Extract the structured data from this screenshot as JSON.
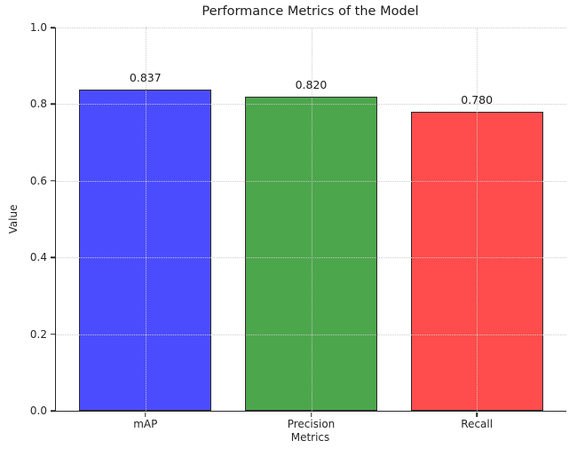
{
  "chart_data": {
    "type": "bar",
    "title": "Performance Metrics of the Model",
    "xlabel": "Metrics",
    "ylabel": "Value",
    "categories": [
      "mAP",
      "Precision",
      "Recall"
    ],
    "values": [
      0.837,
      0.82,
      0.78
    ],
    "value_labels": [
      "0.837",
      "0.820",
      "0.780"
    ],
    "bar_colors": [
      "#4C4CFF",
      "#4CA64C",
      "#FF4C4C"
    ],
    "bar_edge_color": "#2B2B2B",
    "ylim": [
      0.0,
      1.0
    ],
    "yticks": [
      "0.0",
      "0.2",
      "0.4",
      "0.6",
      "0.8",
      "1.0"
    ],
    "xlim": [
      -0.54,
      2.54
    ],
    "bar_width": 0.8,
    "grid": "dotted, horizontal and vertical, drawn above bars",
    "grid_color": "#C9C9C9",
    "legend": "none",
    "axis_color": "#262626",
    "spines": "left and bottom only"
  }
}
